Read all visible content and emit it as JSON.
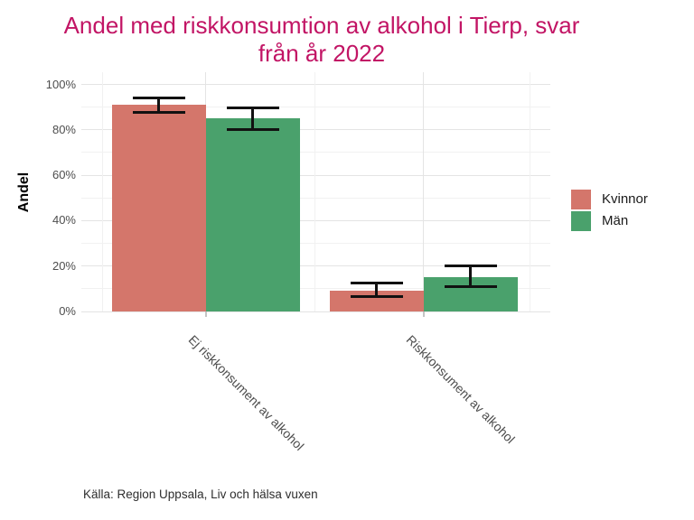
{
  "title_lines": [
    "Andel med riskkonsumtion av alkohol i Tierp, svar",
    "från år 2022"
  ],
  "title_color": "#c21565",
  "caption": "Källa: Region Uppsala, Liv och hälsa vuxen",
  "colors": {
    "kvinnor": "#d4766b",
    "man": "#4aa16c",
    "error_bar": "#111111",
    "axis_text": "#4d4d4d"
  },
  "chart_data": {
    "type": "bar",
    "title": "Andel med riskkonsumtion av alkohol i Tierp, svar från år 2022",
    "xlabel": "",
    "ylabel": "Andel",
    "categories": [
      "Ej riskkonsument av alkohol",
      "Riskkonsument av alkohol"
    ],
    "series": [
      {
        "name": "Kvinnor",
        "color": "#d4766b",
        "values": [
          91,
          9
        ],
        "ci_low": [
          87.5,
          6.5
        ],
        "ci_high": [
          94,
          12.5
        ]
      },
      {
        "name": "Män",
        "color": "#4aa16c",
        "values": [
          85,
          15
        ],
        "ci_low": [
          80,
          11
        ],
        "ci_high": [
          89.5,
          20
        ]
      }
    ],
    "ylim": [
      0,
      100
    ],
    "ytick_labels": [
      "0%",
      "20%",
      "40%",
      "60%",
      "80%",
      "100%"
    ],
    "ytick_values": [
      0,
      20,
      40,
      60,
      80,
      100
    ],
    "minor_ytick_values": [
      10,
      30,
      50,
      70,
      90
    ],
    "grid": true,
    "error_bars": true,
    "legend_position": "right"
  }
}
